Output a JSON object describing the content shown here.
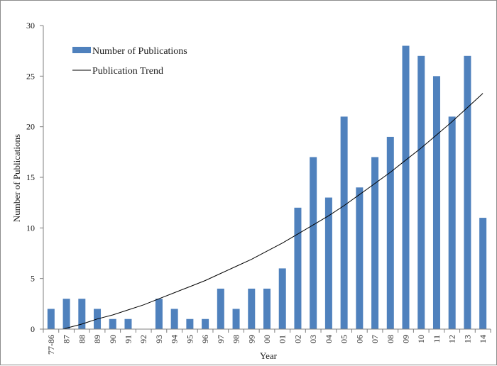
{
  "chart_data": {
    "type": "bar",
    "categories": [
      "77-86",
      "87",
      "88",
      "89",
      "90",
      "91",
      "92",
      "93",
      "94",
      "95",
      "96",
      "97",
      "98",
      "99",
      "00",
      "01",
      "02",
      "03",
      "04",
      "05",
      "06",
      "07",
      "08",
      "09",
      "10",
      "11",
      "12",
      "13",
      "14"
    ],
    "series": [
      {
        "name": "Number of Publications",
        "type": "bar",
        "values": [
          2,
          3,
          3,
          2,
          1,
          1,
          0,
          3,
          2,
          1,
          1,
          4,
          2,
          4,
          4,
          6,
          12,
          17,
          13,
          21,
          14,
          17,
          19,
          28,
          27,
          25,
          21,
          27,
          11
        ]
      },
      {
        "name": "Publication Trend",
        "type": "line",
        "values": [
          -0.3,
          0.1,
          0.5,
          1.0,
          1.4,
          1.9,
          2.4,
          3.0,
          3.6,
          4.2,
          4.8,
          5.5,
          6.2,
          6.9,
          7.7,
          8.5,
          9.4,
          10.3,
          11.2,
          12.2,
          13.3,
          14.4,
          15.5,
          16.7,
          17.9,
          19.2,
          20.5,
          21.9,
          23.3
        ]
      }
    ],
    "xlabel": "Year",
    "ylabel": "Number of Publications",
    "yticks": [
      0,
      5,
      10,
      15,
      20,
      25,
      30
    ],
    "ylim": [
      0,
      30
    ],
    "grid": false,
    "legend_position": "top-left",
    "colors": {
      "bar": "#4f81bd",
      "trend": "#000000",
      "axis": "#7f7f7f"
    }
  }
}
